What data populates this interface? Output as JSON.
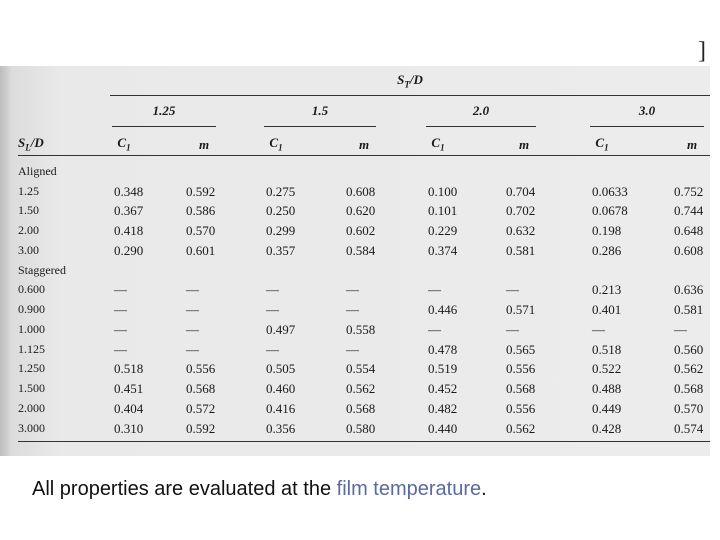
{
  "edge_mark": "]",
  "table": {
    "header": {
      "symbol": "S",
      "sub": "T",
      "rest": "/D"
    },
    "row_header": {
      "symbol": "S",
      "sub": "L",
      "rest": "/D"
    },
    "groups": [
      "1.25",
      "1.5",
      "2.0",
      "3.0"
    ],
    "subheaders": [
      {
        "symbol": "C",
        "sub": "1"
      },
      {
        "symbol": "m"
      }
    ],
    "sections": [
      {
        "label": "Aligned",
        "rows": [
          {
            "label": "1.25",
            "cells": [
              "0.348",
              "0.592",
              "0.275",
              "0.608",
              "0.100",
              "0.704",
              "0.0633",
              "0.752"
            ]
          },
          {
            "label": "1.50",
            "cells": [
              "0.367",
              "0.586",
              "0.250",
              "0.620",
              "0.101",
              "0.702",
              "0.0678",
              "0.744"
            ]
          },
          {
            "label": "2.00",
            "cells": [
              "0.418",
              "0.570",
              "0.299",
              "0.602",
              "0.229",
              "0.632",
              "0.198",
              "0.648"
            ]
          },
          {
            "label": "3.00",
            "cells": [
              "0.290",
              "0.601",
              "0.357",
              "0.584",
              "0.374",
              "0.581",
              "0.286",
              "0.608"
            ]
          }
        ]
      },
      {
        "label": "Staggered",
        "rows": [
          {
            "label": "0.600",
            "cells": [
              "—",
              "—",
              "—",
              "—",
              "—",
              "—",
              "0.213",
              "0.636"
            ]
          },
          {
            "label": "0.900",
            "cells": [
              "—",
              "—",
              "—",
              "—",
              "0.446",
              "0.571",
              "0.401",
              "0.581"
            ]
          },
          {
            "label": "1.000",
            "cells": [
              "—",
              "—",
              "0.497",
              "0.558",
              "—",
              "—",
              "—",
              "—"
            ]
          },
          {
            "label": "1.125",
            "cells": [
              "—",
              "—",
              "—",
              "—",
              "0.478",
              "0.565",
              "0.518",
              "0.560"
            ]
          },
          {
            "label": "1.250",
            "cells": [
              "0.518",
              "0.556",
              "0.505",
              "0.554",
              "0.519",
              "0.556",
              "0.522",
              "0.562"
            ]
          },
          {
            "label": "1.500",
            "cells": [
              "0.451",
              "0.568",
              "0.460",
              "0.562",
              "0.452",
              "0.568",
              "0.488",
              "0.568"
            ]
          },
          {
            "label": "2.000",
            "cells": [
              "0.404",
              "0.572",
              "0.416",
              "0.568",
              "0.482",
              "0.556",
              "0.449",
              "0.570"
            ]
          },
          {
            "label": "3.000",
            "cells": [
              "0.310",
              "0.592",
              "0.356",
              "0.580",
              "0.440",
              "0.562",
              "0.428",
              "0.574"
            ]
          }
        ]
      }
    ]
  },
  "caption": {
    "before": "All properties are evaluated at the ",
    "highlight": "film temperature",
    "after": "."
  }
}
